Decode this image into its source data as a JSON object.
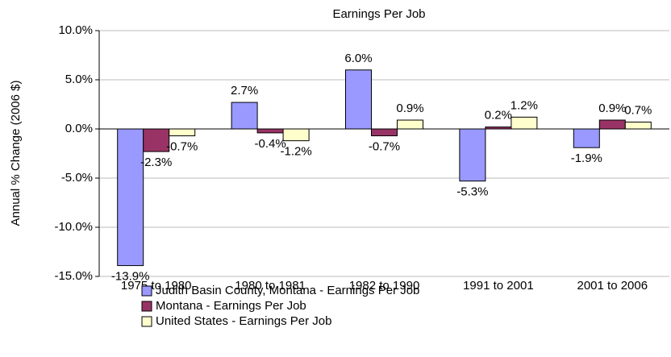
{
  "chart_data": {
    "type": "bar",
    "title": "Earnings Per Job",
    "y_label": "Annual % Change (2006 $)",
    "categories": [
      "1975 to 1980",
      "1980 to 1981",
      "1982 to 1990",
      "1991 to 2001",
      "2001 to 2006"
    ],
    "series": [
      {
        "name": "Judith Basin County, Montana - Earnings Per Job",
        "color": "#9999ff",
        "values": [
          -13.9,
          2.7,
          6.0,
          -5.3,
          -1.9
        ],
        "value_labels": [
          "-13.9%",
          "2.7%",
          "6.0%",
          "-5.3%",
          "-1.9%"
        ]
      },
      {
        "name": "Montana - Earnings Per Job",
        "color": "#993366",
        "values": [
          -2.3,
          -0.4,
          -0.7,
          0.2,
          0.9
        ],
        "value_labels": [
          "-2.3%",
          "-0.4%",
          "-0.7%",
          "0.2%",
          "0.9%"
        ]
      },
      {
        "name": "United States - Earnings Per Job",
        "color": "#ffffcc",
        "values": [
          -0.7,
          -1.2,
          0.9,
          1.2,
          0.7
        ],
        "value_labels": [
          "-0.7%",
          "-1.2%",
          "0.9%",
          "1.2%",
          "0.7%"
        ]
      }
    ],
    "ylim": [
      -15,
      10
    ],
    "yticks": [
      {
        "value": -15,
        "label": "-15.0%"
      },
      {
        "value": -10,
        "label": "-10.0%"
      },
      {
        "value": -5,
        "label": "-5.0%"
      },
      {
        "value": 0,
        "label": "0.0%"
      },
      {
        "value": 5,
        "label": "5.0%"
      },
      {
        "value": 10,
        "label": "10.0%"
      }
    ],
    "grid": true
  }
}
